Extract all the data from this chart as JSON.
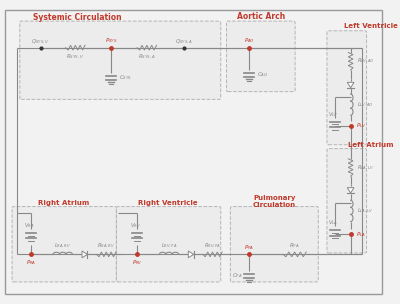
{
  "bg_color": "#f2f2f2",
  "line_color": "#888888",
  "red_color": "#c0392b",
  "box_fill": "#ebebeb",
  "box_stroke": "#aaaaaa",
  "labels": {
    "systemic_circ": "Systemic Circulation",
    "aortic_arch": "Aortic Arch",
    "left_ventricle": "Left Ventricle",
    "left_atrium": "Left Atrium",
    "right_atrium": "Right Atrium",
    "right_ventricle": "Right Ventricle",
    "pulmonary_circ": "Pulmonary\nCirculation"
  }
}
